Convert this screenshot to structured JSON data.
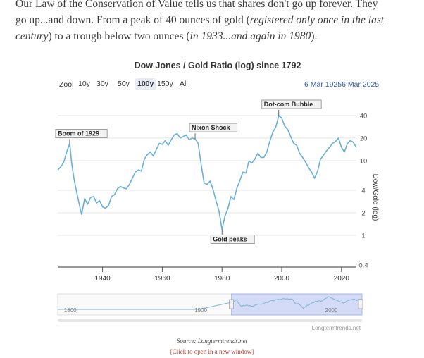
{
  "intro": {
    "line1": "Our Law of the Conservation of Value tells us that shares don't go up forever. They",
    "line2": "go up...and down. From a peak of 40 ounces of gold (",
    "line2_em": "registered only once in the last",
    "line3_em": "century",
    "line3_mid": ") to a trough below two ounces (",
    "line3_em2": "in 1933...and again in 1980",
    "line3_end": ")."
  },
  "chart": {
    "title": "Dow Jones / Gold Ratio (log) since 1792",
    "zoom_label": "Zoom",
    "zoom_buttons": [
      "10y",
      "30y",
      "50y",
      "100y",
      "150y",
      "All"
    ],
    "active_zoom": "100y",
    "range_from": "6 Mar 1925",
    "range_to": "6 Mar 2025",
    "navigator_watermark": "Longtermtrends.net"
  },
  "chart_data": {
    "type": "line",
    "title": "Dow Jones / Gold Ratio (log) since 1792",
    "ylabel": "Dow/Gold (log)",
    "y_scale": "log",
    "ylim": [
      0.4,
      40
    ],
    "xlim": [
      1925,
      2025
    ],
    "y_ticks": [
      0.4,
      1,
      2,
      4,
      10,
      20,
      40
    ],
    "x_ticks": [
      1940,
      1960,
      1980,
      2000,
      2020
    ],
    "navigator_x_ticks": [
      1800,
      1900,
      2000
    ],
    "grid": true,
    "series": [
      {
        "color": "#6ab0d8",
        "x": [
          1925,
          1926,
          1927,
          1928,
          1929,
          1929.7,
          1930.5,
          1931.5,
          1932.5,
          1933,
          1934,
          1935,
          1936,
          1937,
          1938,
          1939,
          1940,
          1941,
          1942,
          1943,
          1944,
          1945,
          1946,
          1947,
          1948,
          1949,
          1950,
          1951,
          1952,
          1953,
          1954,
          1955,
          1956,
          1957,
          1958,
          1959,
          1960,
          1961,
          1962,
          1963,
          1964,
          1965,
          1966,
          1967,
          1968,
          1969,
          1970,
          1971,
          1972,
          1973,
          1974,
          1975,
          1976,
          1977,
          1978,
          1979,
          1980,
          1981,
          1982,
          1983,
          1984,
          1985,
          1986,
          1987,
          1988,
          1989,
          1990,
          1991,
          1992,
          1993,
          1994,
          1995,
          1996,
          1997,
          1998,
          1999,
          2000,
          2001,
          2002,
          2003,
          2004,
          2005,
          2006,
          2007,
          2008,
          2009,
          2010,
          2011,
          2012,
          2013,
          2014,
          2015,
          2016,
          2017,
          2018,
          2019,
          2020,
          2021,
          2022,
          2023,
          2024,
          2025
        ],
        "y": [
          7.5,
          8.2,
          9.5,
          13,
          17,
          9,
          5.5,
          3.5,
          2.3,
          1.9,
          3.1,
          2.6,
          3.2,
          3.3,
          2.7,
          2.9,
          2.4,
          2.3,
          2.5,
          3.3,
          3.5,
          4.2,
          4.5,
          4.3,
          4.2,
          4.8,
          5.8,
          7,
          7.5,
          7.2,
          10.5,
          12,
          13,
          11.5,
          14,
          17,
          16.5,
          18.5,
          16,
          19,
          22,
          23,
          20,
          21,
          22,
          19,
          20,
          19.5,
          17,
          9,
          5,
          4.8,
          5.3,
          4.1,
          2.9,
          2.1,
          1.2,
          1.8,
          2.3,
          3.3,
          3.0,
          4.3,
          5.4,
          7,
          6.8,
          9.8,
          9.3,
          10.5,
          12.5,
          11,
          11,
          13,
          18,
          24,
          28,
          40,
          37,
          29,
          26,
          21,
          17,
          16,
          12.5,
          11,
          9.5,
          8,
          7,
          5.8,
          7.2,
          10.5,
          11.8,
          13.5,
          15,
          17,
          18,
          20,
          15,
          13,
          17,
          18.5,
          17.5,
          15
        ]
      }
    ],
    "annotations": [
      {
        "label": "Boom of 1929",
        "x": 1929,
        "y": 17
      },
      {
        "label": "Nixon Shock",
        "x": 1971,
        "y": 19.5
      },
      {
        "label": "Gold peaks",
        "x": 1980,
        "y": 1.2
      },
      {
        "label": "Dot-com Bubble",
        "x": 1999,
        "y": 40
      }
    ]
  },
  "source": "Source: Longtermtrends.net",
  "link_text": "[Click to open in a new window]"
}
